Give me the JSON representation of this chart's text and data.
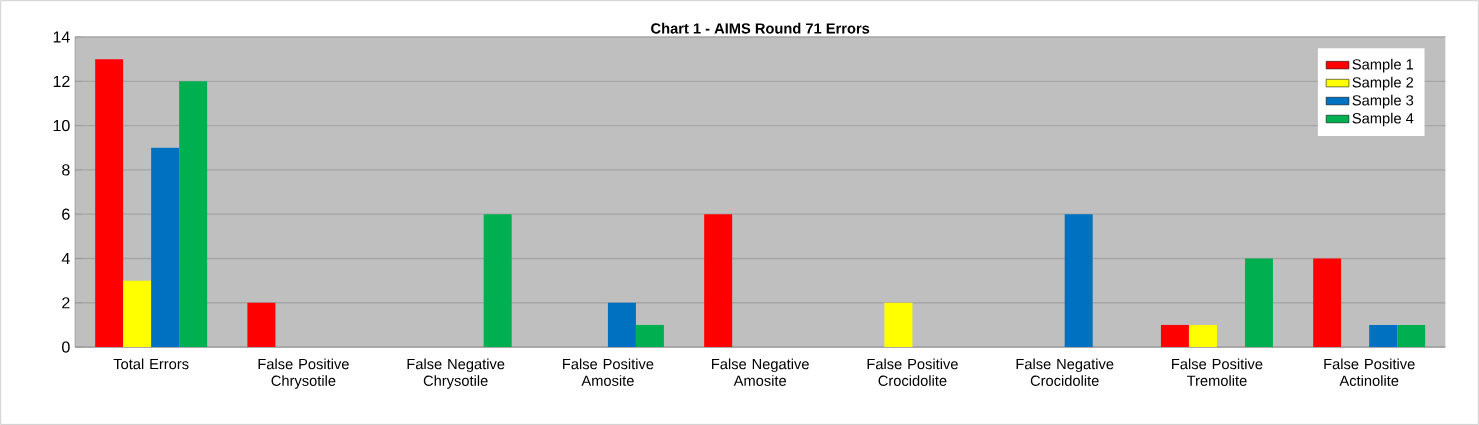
{
  "chart_data": {
    "type": "bar",
    "title": "Chart 1 - AIMS Round 71 Errors",
    "categories": [
      "Total Errors",
      "False Positive Chrysotile",
      "False Negative Chrysotile",
      "False Positive Amosite",
      "False Negative Amosite",
      "False Positive Crocidolite",
      "False Negative Crocidolite",
      "False Positive Tremolite",
      "False Positive Actinolite"
    ],
    "series": [
      {
        "name": "Sample 1",
        "color": "#ff0000",
        "values": [
          13,
          2,
          0,
          0,
          6,
          0,
          0,
          1,
          4
        ]
      },
      {
        "name": "Sample 2",
        "color": "#ffff00",
        "values": [
          3,
          0,
          0,
          0,
          0,
          2,
          0,
          1,
          0
        ]
      },
      {
        "name": "Sample 3",
        "color": "#0070c0",
        "values": [
          9,
          0,
          0,
          2,
          0,
          0,
          6,
          0,
          1
        ]
      },
      {
        "name": "Sample 4",
        "color": "#00b050",
        "values": [
          12,
          0,
          6,
          1,
          0,
          0,
          0,
          4,
          1
        ]
      }
    ],
    "ylim": [
      0,
      14
    ],
    "yticks": [
      0,
      2,
      4,
      6,
      8,
      10,
      12,
      14
    ],
    "grid": "y",
    "legend": "top right"
  }
}
